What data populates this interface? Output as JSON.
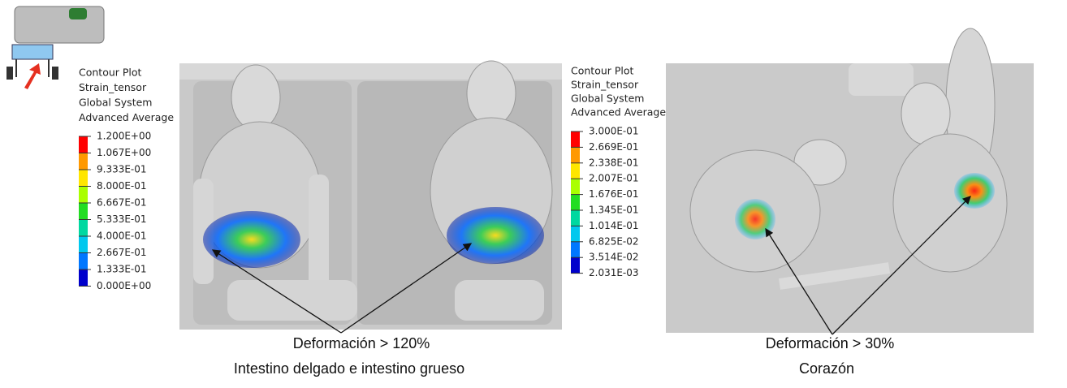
{
  "legends": [
    {
      "title": [
        "Contour Plot",
        "Strain_tensor",
        "Global System",
        "Advanced Average"
      ],
      "labels": [
        "1.200E+00",
        "1.067E+00",
        "9.333E-01",
        "8.000E-01",
        "6.667E-01",
        "5.333E-01",
        "4.000E-01",
        "2.667E-01",
        "1.333E-01",
        "0.000E+00"
      ]
    },
    {
      "title": [
        "Contour Plot",
        "Strain_tensor",
        "Global System",
        "Advanced Average"
      ],
      "labels": [
        "3.000E-01",
        "2.669E-01",
        "2.338E-01",
        "2.007E-01",
        "1.676E-01",
        "1.345E-01",
        "1.014E-01",
        "6.825E-02",
        "3.514E-02",
        "2.031E-03"
      ]
    }
  ],
  "annotations": [
    {
      "lines": [
        "Deformación > 120%",
        "Intestino delgado e intestino grueso"
      ]
    },
    {
      "lines": [
        "Deformación > 30%",
        "Corazón"
      ]
    }
  ]
}
